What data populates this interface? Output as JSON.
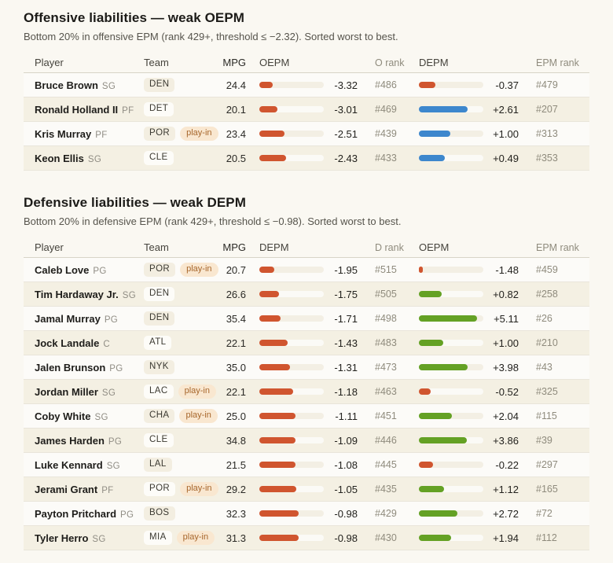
{
  "colors": {
    "negative_bar": "#d0552f",
    "depm_positive_bar": "#3d87cd",
    "oepm_positive_bar": "#64a124"
  },
  "sections": [
    {
      "title": "Offensive liabilities — weak OEPM",
      "subtitle": "Bottom 20% in offensive EPM (rank 429+, threshold ≤ −2.32). Sorted worst to best.",
      "columns": [
        "Player",
        "Team",
        "MPG",
        "OEPM",
        "O rank",
        "DEPM",
        "EPM rank"
      ],
      "bar1": {
        "metric": "OEPM",
        "scale": {
          "min": -4.2,
          "max": 0.1
        },
        "positive_color": "#64a124"
      },
      "bar2": {
        "metric": "DEPM",
        "scale": {
          "min": -1.95,
          "max": 4.1
        },
        "positive_color": "#3d87cd"
      },
      "rows": [
        {
          "player": "Bruce Brown",
          "pos": "SG",
          "team": "DEN",
          "playin": false,
          "mpg": "24.4",
          "v1": -3.32,
          "v1_label": "-3.32",
          "rank1": "#486",
          "v2": -0.37,
          "v2_label": "-0.37",
          "rank2": "#479"
        },
        {
          "player": "Ronald Holland II",
          "pos": "PF",
          "team": "DET",
          "playin": false,
          "mpg": "20.1",
          "v1": -3.01,
          "v1_label": "-3.01",
          "rank1": "#469",
          "v2": 2.61,
          "v2_label": "+2.61",
          "rank2": "#207"
        },
        {
          "player": "Kris Murray",
          "pos": "PF",
          "team": "POR",
          "playin": true,
          "mpg": "23.4",
          "v1": -2.51,
          "v1_label": "-2.51",
          "rank1": "#439",
          "v2": 1.0,
          "v2_label": "+1.00",
          "rank2": "#313"
        },
        {
          "player": "Keon Ellis",
          "pos": "SG",
          "team": "CLE",
          "playin": false,
          "mpg": "20.5",
          "v1": -2.43,
          "v1_label": "-2.43",
          "rank1": "#433",
          "v2": 0.49,
          "v2_label": "+0.49",
          "rank2": "#353"
        }
      ]
    },
    {
      "title": "Defensive liabilities — weak DEPM",
      "subtitle": "Bottom 20% in defensive EPM (rank 429+, threshold ≤ −0.98). Sorted worst to best.",
      "columns": [
        "Player",
        "Team",
        "MPG",
        "DEPM",
        "D rank",
        "OEPM",
        "EPM rank"
      ],
      "bar1": {
        "metric": "DEPM",
        "scale": {
          "min": -2.56,
          "max": 0.05
        },
        "positive_color": "#3d87cd"
      },
      "bar2": {
        "metric": "OEPM",
        "scale": {
          "min": -1.97,
          "max": 5.9
        },
        "positive_color": "#64a124"
      },
      "rows": [
        {
          "player": "Caleb Love",
          "pos": "PG",
          "team": "POR",
          "playin": true,
          "mpg": "20.7",
          "v1": -1.95,
          "v1_label": "-1.95",
          "rank1": "#515",
          "v2": -1.48,
          "v2_label": "-1.48",
          "rank2": "#459"
        },
        {
          "player": "Tim Hardaway Jr.",
          "pos": "SG",
          "team": "DEN",
          "playin": false,
          "mpg": "26.6",
          "v1": -1.75,
          "v1_label": "-1.75",
          "rank1": "#505",
          "v2": 0.82,
          "v2_label": "+0.82",
          "rank2": "#258"
        },
        {
          "player": "Jamal Murray",
          "pos": "PG",
          "team": "DEN",
          "playin": false,
          "mpg": "35.4",
          "v1": -1.71,
          "v1_label": "-1.71",
          "rank1": "#498",
          "v2": 5.11,
          "v2_label": "+5.11",
          "rank2": "#26"
        },
        {
          "player": "Jock Landale",
          "pos": "C",
          "team": "ATL",
          "playin": false,
          "mpg": "22.1",
          "v1": -1.43,
          "v1_label": "-1.43",
          "rank1": "#483",
          "v2": 1.0,
          "v2_label": "+1.00",
          "rank2": "#210"
        },
        {
          "player": "Jalen Brunson",
          "pos": "PG",
          "team": "NYK",
          "playin": false,
          "mpg": "35.0",
          "v1": -1.31,
          "v1_label": "-1.31",
          "rank1": "#473",
          "v2": 3.98,
          "v2_label": "+3.98",
          "rank2": "#43"
        },
        {
          "player": "Jordan Miller",
          "pos": "SG",
          "team": "LAC",
          "playin": true,
          "mpg": "22.1",
          "v1": -1.18,
          "v1_label": "-1.18",
          "rank1": "#463",
          "v2": -0.52,
          "v2_label": "-0.52",
          "rank2": "#325"
        },
        {
          "player": "Coby White",
          "pos": "SG",
          "team": "CHA",
          "playin": true,
          "mpg": "25.0",
          "v1": -1.11,
          "v1_label": "-1.11",
          "rank1": "#451",
          "v2": 2.04,
          "v2_label": "+2.04",
          "rank2": "#115"
        },
        {
          "player": "James Harden",
          "pos": "PG",
          "team": "CLE",
          "playin": false,
          "mpg": "34.8",
          "v1": -1.09,
          "v1_label": "-1.09",
          "rank1": "#446",
          "v2": 3.86,
          "v2_label": "+3.86",
          "rank2": "#39"
        },
        {
          "player": "Luke Kennard",
          "pos": "SG",
          "team": "LAL",
          "playin": false,
          "mpg": "21.5",
          "v1": -1.08,
          "v1_label": "-1.08",
          "rank1": "#445",
          "v2": -0.22,
          "v2_label": "-0.22",
          "rank2": "#297"
        },
        {
          "player": "Jerami Grant",
          "pos": "PF",
          "team": "POR",
          "playin": true,
          "mpg": "29.2",
          "v1": -1.05,
          "v1_label": "-1.05",
          "rank1": "#435",
          "v2": 1.12,
          "v2_label": "+1.12",
          "rank2": "#165"
        },
        {
          "player": "Payton Pritchard",
          "pos": "PG",
          "team": "BOS",
          "playin": false,
          "mpg": "32.3",
          "v1": -0.98,
          "v1_label": "-0.98",
          "rank1": "#429",
          "v2": 2.72,
          "v2_label": "+2.72",
          "rank2": "#72"
        },
        {
          "player": "Tyler Herro",
          "pos": "SG",
          "team": "MIA",
          "playin": true,
          "mpg": "31.3",
          "v1": -0.98,
          "v1_label": "-0.98",
          "rank1": "#430",
          "v2": 1.94,
          "v2_label": "+1.94",
          "rank2": "#112"
        }
      ]
    }
  ],
  "chart_data": [
    {
      "type": "table",
      "title": "Offensive liabilities — weak OEPM",
      "subtitle": "Bottom 20% in offensive EPM (rank 429+, threshold ≤ −2.32). Sorted worst to best.",
      "columns": [
        "Player",
        "Team",
        "MPG",
        "OEPM",
        "O rank",
        "DEPM",
        "EPM rank"
      ],
      "rows": [
        [
          "Bruce Brown SG",
          "DEN",
          24.4,
          -3.32,
          "#486",
          -0.37,
          "#479"
        ],
        [
          "Ronald Holland II PF",
          "DET",
          20.1,
          -3.01,
          "#469",
          2.61,
          "#207"
        ],
        [
          "Kris Murray PF",
          "POR (play-in)",
          23.4,
          -2.51,
          "#439",
          1.0,
          "#313"
        ],
        [
          "Keon Ellis SG",
          "CLE",
          20.5,
          -2.43,
          "#433",
          0.49,
          "#353"
        ]
      ]
    },
    {
      "type": "table",
      "title": "Defensive liabilities — weak DEPM",
      "subtitle": "Bottom 20% in defensive EPM (rank 429+, threshold ≤ −0.98). Sorted worst to best.",
      "columns": [
        "Player",
        "Team",
        "MPG",
        "DEPM",
        "D rank",
        "OEPM",
        "EPM rank"
      ],
      "rows": [
        [
          "Caleb Love PG",
          "POR (play-in)",
          20.7,
          -1.95,
          "#515",
          -1.48,
          "#459"
        ],
        [
          "Tim Hardaway Jr. SG",
          "DEN",
          26.6,
          -1.75,
          "#505",
          0.82,
          "#258"
        ],
        [
          "Jamal Murray PG",
          "DEN",
          35.4,
          -1.71,
          "#498",
          5.11,
          "#26"
        ],
        [
          "Jock Landale C",
          "ATL",
          22.1,
          -1.43,
          "#483",
          1.0,
          "#210"
        ],
        [
          "Jalen Brunson PG",
          "NYK",
          35.0,
          -1.31,
          "#473",
          3.98,
          "#43"
        ],
        [
          "Jordan Miller SG",
          "LAC (play-in)",
          22.1,
          -1.18,
          "#463",
          -0.52,
          "#325"
        ],
        [
          "Coby White SG",
          "CHA (play-in)",
          25.0,
          -1.11,
          "#451",
          2.04,
          "#115"
        ],
        [
          "James Harden PG",
          "CLE",
          34.8,
          -1.09,
          "#446",
          3.86,
          "#39"
        ],
        [
          "Luke Kennard SG",
          "LAL",
          21.5,
          -1.08,
          "#445",
          -0.22,
          "#297"
        ],
        [
          "Jerami Grant PF",
          "POR (play-in)",
          29.2,
          -1.05,
          "#435",
          1.12,
          "#165"
        ],
        [
          "Payton Pritchard PG",
          "BOS",
          32.3,
          -0.98,
          "#429",
          2.72,
          "#72"
        ],
        [
          "Tyler Herro SG",
          "MIA (play-in)",
          31.3,
          -0.98,
          "#430",
          1.94,
          "#112"
        ]
      ]
    }
  ]
}
